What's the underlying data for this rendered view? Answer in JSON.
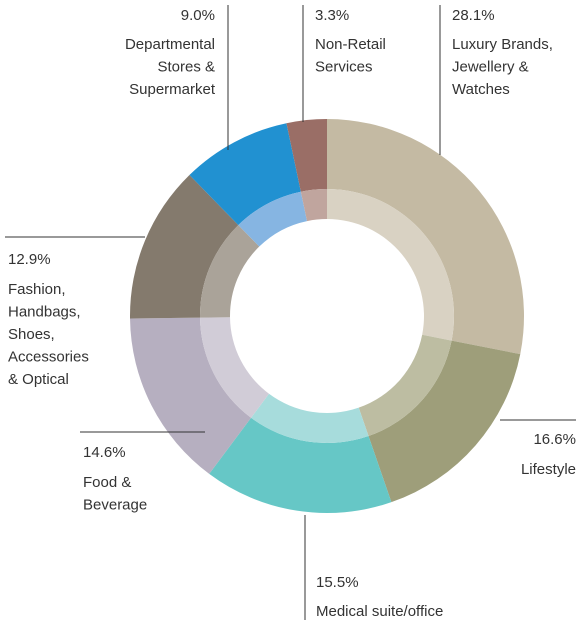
{
  "chart_data": {
    "type": "donut",
    "categories": [
      [
        "Luxury Brands,",
        "Jewellery &",
        "Watches"
      ],
      [
        "Lifestyle"
      ],
      [
        "Medical suite/office"
      ],
      [
        "Food &",
        "Beverage"
      ],
      [
        "Fashion,",
        "Handbags,",
        "Shoes,",
        "Accessories",
        "& Optical"
      ],
      [
        "Departmental",
        "Stores &",
        "Supermarket"
      ],
      [
        "Non-Retail",
        "Services"
      ]
    ],
    "values": [
      28.1,
      16.6,
      15.5,
      14.6,
      12.9,
      9.0,
      3.3
    ],
    "value_labels": [
      "28.1%",
      "16.6%",
      "15.5%",
      "14.6%",
      "12.9%",
      "9.0%",
      "3.3%"
    ],
    "colors": [
      "#c4baa3",
      "#9e9e7a",
      "#66c7c6",
      "#b6afc0",
      "#847a6d",
      "#2191d1",
      "#9a6e66"
    ],
    "inner_colors": [
      "#d9d2c3",
      "#bdbda2",
      "#a7dcdc",
      "#d1ccd7",
      "#aaa399",
      "#86b5e2",
      "#c0a59e"
    ]
  }
}
